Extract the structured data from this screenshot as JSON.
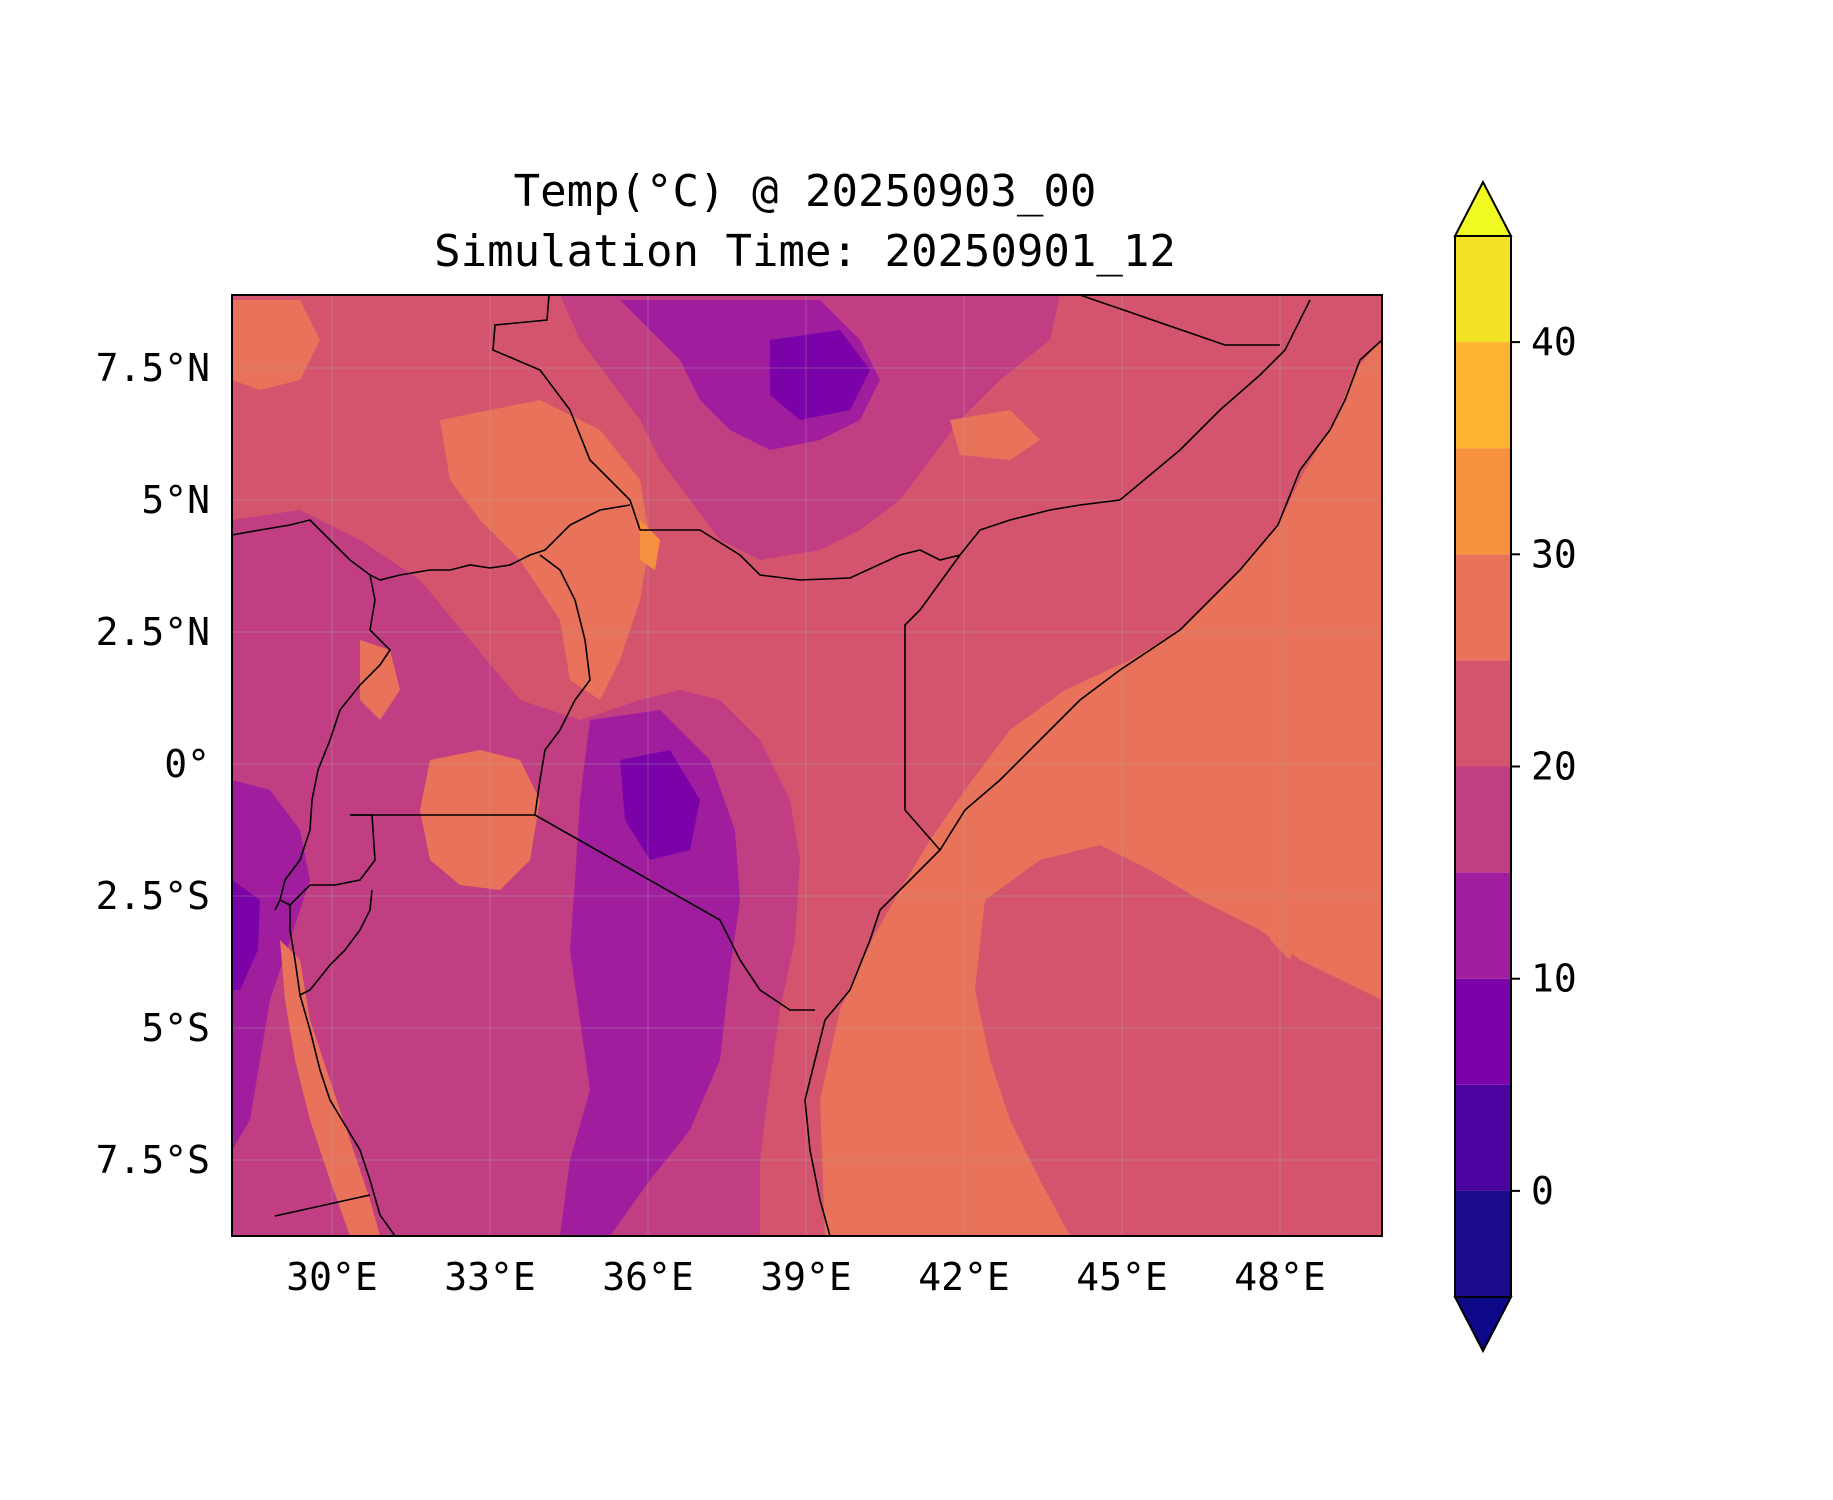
{
  "title_line1": "Temp(°C) @ 20250903_00",
  "title_line2": "Simulation Time: 20250901_12",
  "map": {
    "lat_labels": [
      "7.5°N",
      "5°N",
      "2.5°N",
      "0°",
      "2.5°S",
      "5°S",
      "7.5°S"
    ],
    "lon_labels": [
      "30°E",
      "33°E",
      "36°E",
      "39°E",
      "42°E",
      "45°E",
      "48°E"
    ],
    "lon_range": [
      28.1,
      50.0
    ],
    "lat_range": [
      -9.0,
      8.9
    ],
    "gridlines": true,
    "color_land_mid": "#d5546d",
    "color_ocean": "#e8725a"
  },
  "colorbar": {
    "levels": [
      -5,
      0,
      5,
      10,
      15,
      20,
      25,
      30,
      35,
      40,
      45
    ],
    "colors": [
      "#1b0c8e",
      "#4b03a0",
      "#7a02a8",
      "#a01e9e",
      "#c13e83",
      "#d5546d",
      "#e8725a",
      "#f7913d",
      "#fdb32e",
      "#f3e126"
    ],
    "under_color": "#0d0887",
    "over_color": "#f0f921",
    "tick_labels": [
      "0",
      "10",
      "20",
      "30",
      "40"
    ],
    "tick_values": [
      0,
      10,
      20,
      30,
      40
    ],
    "extend": "both"
  }
}
